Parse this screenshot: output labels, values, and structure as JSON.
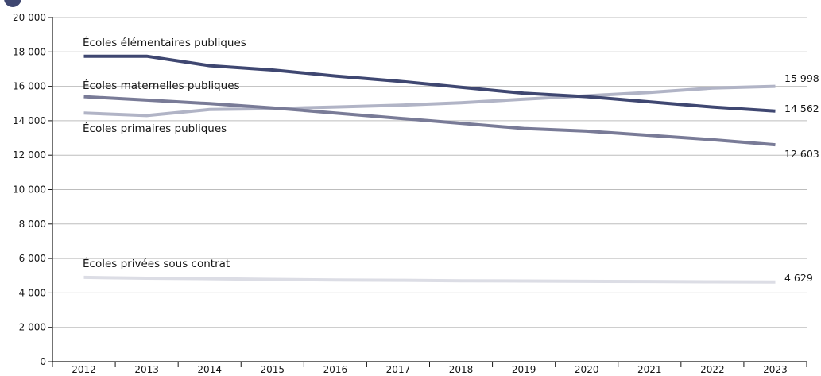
{
  "chart_data": {
    "type": "line",
    "title": "",
    "xlabel": "",
    "ylabel": "",
    "x": [
      "2012",
      "2013",
      "2014",
      "2015",
      "2016",
      "2017",
      "2018",
      "2019",
      "2020",
      "2021",
      "2022",
      "2023"
    ],
    "ylim": [
      0,
      20000
    ],
    "yticks": [
      0,
      2000,
      4000,
      6000,
      8000,
      10000,
      12000,
      14000,
      16000,
      18000,
      20000
    ],
    "ytick_labels": [
      "0",
      "2 000",
      "4 000",
      "6 000",
      "8 000",
      "10 000",
      "12 000",
      "14 000",
      "16 000",
      "18 000",
      "20 000"
    ],
    "grid": "horizontal",
    "series": [
      {
        "name": "Écoles élémentaires publiques",
        "color": "#3f4771",
        "values": [
          17750,
          17750,
          17200,
          16950,
          16600,
          16300,
          15950,
          15600,
          15400,
          15100,
          14800,
          14562
        ],
        "end_label": "14 562"
      },
      {
        "name": "Écoles maternelles publiques",
        "color": "#b1b4c6",
        "values": [
          14450,
          14300,
          14650,
          14700,
          14800,
          14900,
          15050,
          15250,
          15450,
          15650,
          15900,
          15998
        ],
        "end_label": "15 998"
      },
      {
        "name": "Écoles primaires publiques",
        "color": "#797b97",
        "values": [
          15400,
          15200,
          15000,
          14750,
          14450,
          14150,
          13850,
          13550,
          13400,
          13150,
          12900,
          12603
        ],
        "end_label": "12 603"
      },
      {
        "name": "Écoles privées sous contrat",
        "color": "#dcdde5",
        "values": [
          4900,
          4850,
          4820,
          4780,
          4750,
          4730,
          4700,
          4690,
          4670,
          4660,
          4640,
          4629
        ],
        "end_label": "4 629"
      }
    ]
  }
}
